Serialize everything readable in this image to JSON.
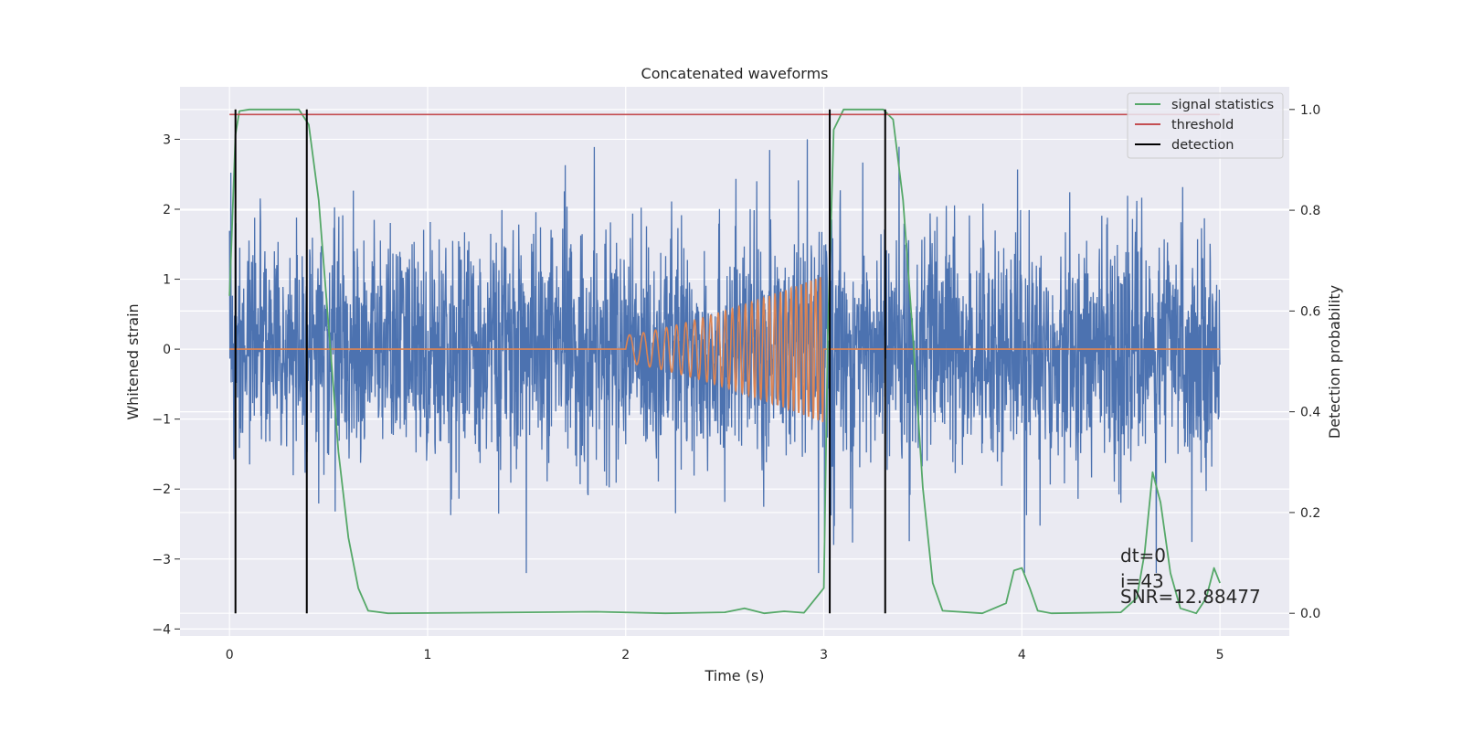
{
  "chart_data": {
    "type": "line",
    "title": "Concatenated waveforms",
    "xlabel": "Time (s)",
    "ylabel": "Whitened strain",
    "ylabel_right": "Detection probability",
    "xlim": [
      -0.25,
      5.35
    ],
    "ylim": [
      -4.1,
      3.75
    ],
    "ylim_right": [
      -0.045,
      1.045
    ],
    "x_ticks": [
      "0",
      "1",
      "2",
      "3",
      "4",
      "5"
    ],
    "y_ticks": [
      "3",
      "2",
      "1",
      "0",
      "−1",
      "−2",
      "−3",
      "−4"
    ],
    "y_ticks_right": [
      "1.0",
      "0.8",
      "0.6",
      "0.4",
      "0.2",
      "0.0"
    ],
    "grid": true,
    "legend_position": "top-right",
    "series": [
      {
        "name": "",
        "axis": "left",
        "color": "#4c72b0",
        "description": "whitened strain noise",
        "t": [
          0,
          5
        ],
        "std": 0.85,
        "peak": 3.0
      },
      {
        "name": "",
        "axis": "left",
        "color": "#dd8452",
        "description": "injected chirp",
        "t_start": 2.0,
        "t_end": 3.0,
        "amp_start": 0.2,
        "amp_end": 1.05,
        "cycles": 28
      },
      {
        "name": "signal statistics",
        "axis": "right",
        "color": "#55a868",
        "x": [
          0,
          0.03,
          0.05,
          0.1,
          0.35,
          0.4,
          0.45,
          0.5,
          0.55,
          0.6,
          0.65,
          0.7,
          0.8,
          1.5,
          1.85,
          2.2,
          2.5,
          2.6,
          2.7,
          2.8,
          2.9,
          3.0,
          3.02,
          3.05,
          3.1,
          3.3,
          3.35,
          3.4,
          3.45,
          3.5,
          3.55,
          3.6,
          3.8,
          3.92,
          3.96,
          4.0,
          4.04,
          4.08,
          4.15,
          4.5,
          4.58,
          4.62,
          4.66,
          4.7,
          4.75,
          4.8,
          4.88,
          4.93,
          4.97,
          5.0
        ],
        "y": [
          0.63,
          0.95,
          0.997,
          1.0,
          1.0,
          0.97,
          0.82,
          0.57,
          0.32,
          0.15,
          0.05,
          0.005,
          0.0,
          0.002,
          0.003,
          0.0,
          0.002,
          0.01,
          0.0,
          0.004,
          0.001,
          0.05,
          0.55,
          0.96,
          1.0,
          1.0,
          0.98,
          0.82,
          0.55,
          0.25,
          0.06,
          0.005,
          0.0,
          0.02,
          0.085,
          0.09,
          0.05,
          0.005,
          0.0,
          0.002,
          0.03,
          0.12,
          0.28,
          0.22,
          0.08,
          0.01,
          0.0,
          0.03,
          0.09,
          0.06
        ]
      },
      {
        "name": "threshold",
        "axis": "right",
        "color": "#c44e52",
        "x": [
          0,
          5
        ],
        "y": [
          0.99,
          0.99
        ]
      },
      {
        "name": "detection",
        "axis": "right",
        "color": "#000000",
        "x": [
          0.03,
          0.39,
          3.03,
          3.31
        ],
        "y0": 0.0,
        "y1": 1.0
      }
    ],
    "annotations": [
      "dt=0",
      "i=43",
      "SNR=12.88477"
    ]
  }
}
